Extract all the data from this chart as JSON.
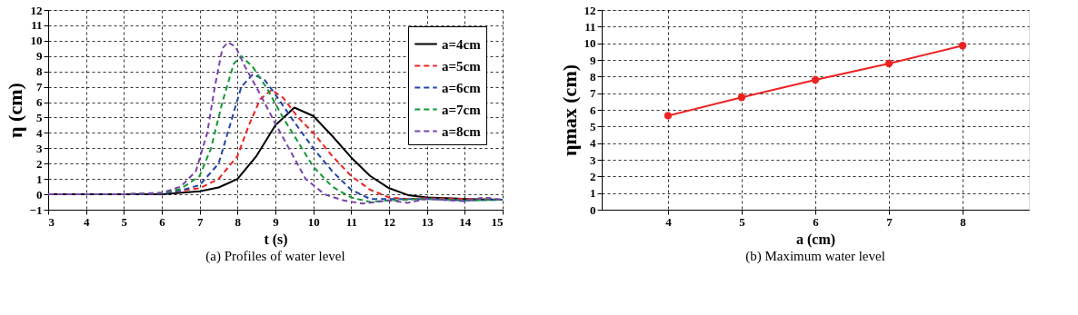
{
  "chart_data": [
    {
      "type": "line",
      "title": "(a) Profiles of water level",
      "xlabel": "t (s)",
      "ylabel": "η (cm)",
      "xlim": [
        3,
        15
      ],
      "xticks": [
        3,
        4,
        5,
        6,
        7,
        8,
        9,
        10,
        11,
        12,
        13,
        14,
        15
      ],
      "ylim": [
        -1,
        12
      ],
      "yticks": [
        -1,
        0,
        1,
        2,
        3,
        4,
        5,
        6,
        7,
        8,
        9,
        10,
        11,
        12
      ],
      "grid": true,
      "legend": "top right",
      "marker": "none",
      "series": [
        {
          "name": "a=4cm",
          "color": "#000000",
          "line_style": "solid",
          "x": [
            3,
            5,
            6,
            7,
            7.5,
            8,
            8.5,
            9,
            9.5,
            10,
            10.5,
            11,
            11.5,
            12,
            12.5,
            13,
            14,
            15
          ],
          "values": [
            0,
            0,
            0,
            0.2,
            0.45,
            1.0,
            2.5,
            4.5,
            5.65,
            5.1,
            3.8,
            2.4,
            1.2,
            0.4,
            -0.05,
            -0.2,
            -0.3,
            -0.35
          ]
        },
        {
          "name": "a=5cm",
          "color": "#ee2222",
          "line_style": "dashed",
          "x": [
            3,
            5,
            6,
            7,
            7.5,
            8,
            8.3,
            8.6,
            8.9,
            9.2,
            9.6,
            10,
            10.5,
            11,
            11.5,
            12,
            12.5,
            13,
            14,
            15
          ],
          "values": [
            0,
            0,
            0.05,
            0.4,
            1.0,
            2.5,
            4.5,
            6.2,
            6.8,
            6.3,
            5.0,
            4.0,
            2.5,
            1.2,
            0.3,
            -0.2,
            -0.3,
            -0.25,
            -0.3,
            -0.35
          ]
        },
        {
          "name": "a=6cm",
          "color": "#2244aa",
          "line_style": "dashed",
          "x": [
            3,
            5,
            6,
            6.5,
            7,
            7.5,
            7.8,
            8.1,
            8.4,
            8.7,
            9,
            9.5,
            10,
            10.5,
            11,
            11.5,
            12,
            13,
            14,
            15
          ],
          "values": [
            0,
            0,
            0.05,
            0.25,
            0.6,
            2.0,
            4.5,
            7.0,
            7.8,
            7.5,
            6.5,
            4.7,
            3.0,
            1.5,
            0.3,
            -0.3,
            -0.3,
            -0.3,
            -0.4,
            -0.35
          ]
        },
        {
          "name": "a=7cm",
          "color": "#119933",
          "line_style": "dashed",
          "x": [
            3,
            5,
            6,
            6.5,
            7,
            7.3,
            7.6,
            7.9,
            8.1,
            8.4,
            8.8,
            9.2,
            9.6,
            10,
            10.5,
            11,
            11.5,
            12,
            13,
            14,
            15
          ],
          "values": [
            0,
            0,
            0.1,
            0.35,
            1.2,
            3.0,
            6.0,
            8.5,
            9.0,
            8.3,
            6.8,
            5.0,
            3.4,
            1.8,
            0.5,
            -0.2,
            -0.5,
            -0.4,
            -0.3,
            -0.4,
            -0.35
          ]
        },
        {
          "name": "a=8cm",
          "color": "#7744aa",
          "line_style": "dashed",
          "x": [
            3,
            5,
            6,
            6.5,
            6.9,
            7.2,
            7.4,
            7.6,
            7.75,
            7.95,
            8.2,
            8.6,
            9,
            9.4,
            9.8,
            10.3,
            10.8,
            11.3,
            12,
            12.5,
            13,
            14,
            14.5,
            15
          ],
          "values": [
            0,
            0,
            0.1,
            0.5,
            1.5,
            4.0,
            7.0,
            9.5,
            9.9,
            9.6,
            8.3,
            6.5,
            4.6,
            2.8,
            1.0,
            0.0,
            -0.4,
            -0.6,
            -0.4,
            -0.55,
            -0.3,
            -0.45,
            -0.2,
            -0.35
          ]
        }
      ]
    },
    {
      "type": "line",
      "title": "(b) Maximum water level",
      "xlabel": "a (cm)",
      "ylabel": "ηmax (cm)",
      "xlim": [
        3.1,
        8.9
      ],
      "xticks": [
        4,
        5,
        6,
        7,
        8
      ],
      "ylim": [
        0,
        12
      ],
      "yticks": [
        0,
        1,
        2,
        3,
        4,
        5,
        6,
        7,
        8,
        9,
        10,
        11,
        12
      ],
      "grid": true,
      "legend": false,
      "marker": "circle",
      "series": [
        {
          "color": "#ee2222",
          "line_style": "solid",
          "x": [
            4,
            5,
            6,
            7,
            8
          ],
          "values": [
            5.65,
            6.75,
            7.8,
            8.78,
            9.86
          ]
        }
      ]
    }
  ]
}
